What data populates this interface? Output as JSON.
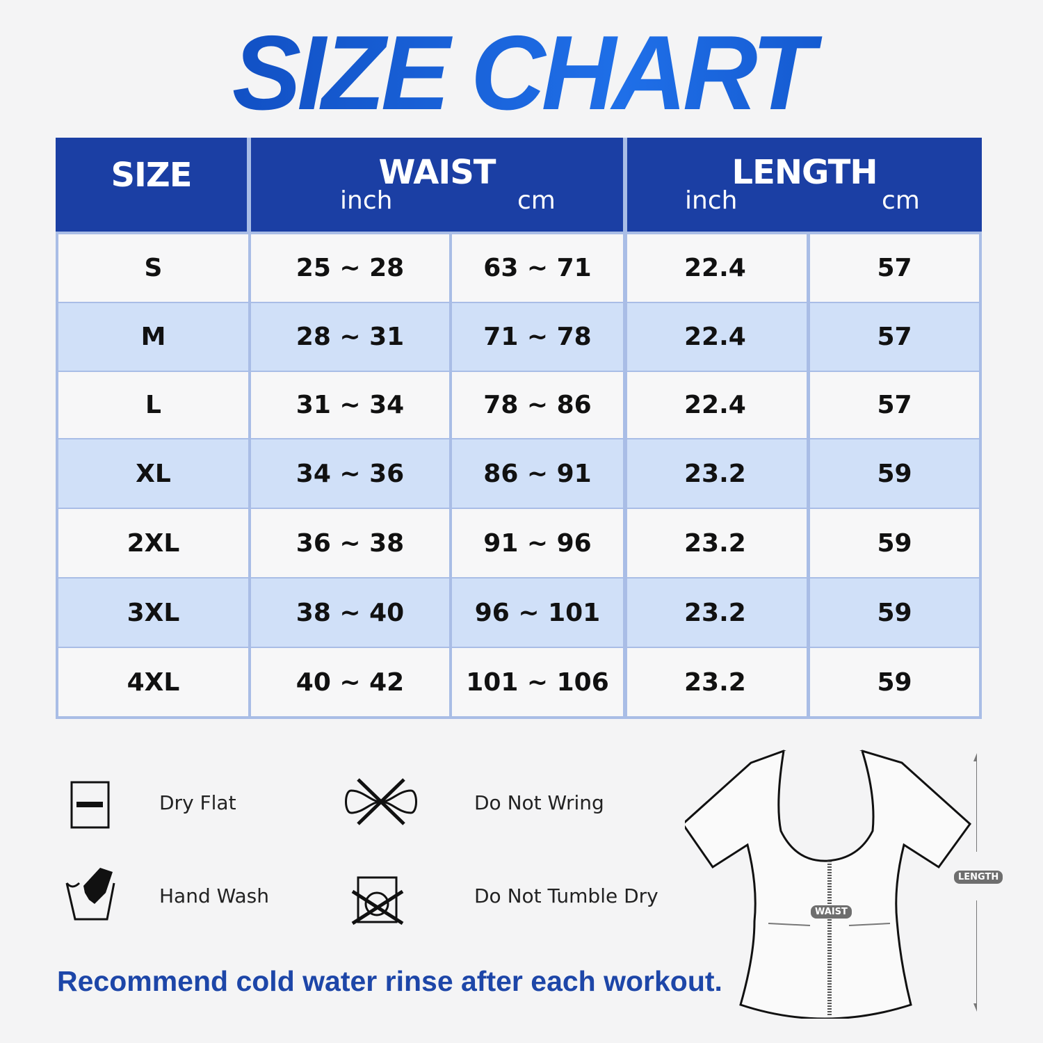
{
  "title": "SIZE CHART",
  "table": {
    "headers": {
      "size": "SIZE",
      "waist": "WAIST",
      "length": "LENGTH",
      "inch": "inch",
      "cm": "cm"
    },
    "rows": [
      {
        "size": "S",
        "waist_inch": "25 ~ 28",
        "waist_cm": "63 ~ 71",
        "length_inch": "22.4",
        "length_cm": "57"
      },
      {
        "size": "M",
        "waist_inch": "28 ~ 31",
        "waist_cm": "71 ~ 78",
        "length_inch": "22.4",
        "length_cm": "57"
      },
      {
        "size": "L",
        "waist_inch": "31 ~ 34",
        "waist_cm": "78 ~ 86",
        "length_inch": "22.4",
        "length_cm": "57"
      },
      {
        "size": "XL",
        "waist_inch": "34 ~ 36",
        "waist_cm": "86 ~ 91",
        "length_inch": "23.2",
        "length_cm": "59"
      },
      {
        "size": "2XL",
        "waist_inch": "36 ~ 38",
        "waist_cm": "91 ~ 96",
        "length_inch": "23.2",
        "length_cm": "59"
      },
      {
        "size": "3XL",
        "waist_inch": "38 ~ 40",
        "waist_cm": "96 ~ 101",
        "length_inch": "23.2",
        "length_cm": "59"
      },
      {
        "size": "4XL",
        "waist_inch": "40 ~ 42",
        "waist_cm": "101 ~ 106",
        "length_inch": "23.2",
        "length_cm": "59"
      }
    ]
  },
  "care": {
    "dry_flat": "Dry Flat",
    "do_not_wring": "Do Not Wring",
    "hand_wash": "Hand Wash",
    "do_not_tumble_dry": "Do Not Tumble Dry"
  },
  "note": "Recommend cold water rinse after each workout.",
  "diagram": {
    "waist_label": "WAIST",
    "length_label": "LENGTH"
  },
  "colors": {
    "header_blue": "#1b3fa4",
    "stripe_blue": "#d0e0f8",
    "title_blue": "#0a4fc4"
  }
}
